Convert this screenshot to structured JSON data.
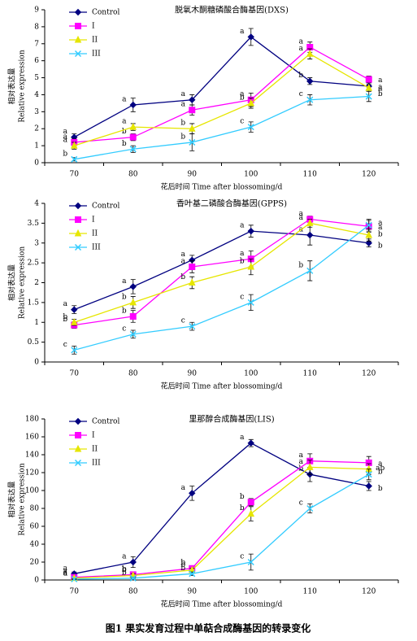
{
  "chart_data": [
    {
      "type": "line",
      "title": "脱氧木酮糖磷酸合酶基因(DXS)",
      "x_label": "花后时间 Time after blossoming/d",
      "y_label": [
        "相对表达量",
        "Relative expression"
      ],
      "categories": [
        "70",
        "80",
        "90",
        "100",
        "110",
        "120"
      ],
      "ylim": [
        0,
        9
      ],
      "yticks": [
        0,
        1,
        2,
        3,
        4,
        5,
        6,
        7,
        8,
        9
      ],
      "legend": "upper-left",
      "series": [
        {
          "name": "Control",
          "color": "#000080",
          "marker": "diamond",
          "values": [
            1.5,
            3.4,
            3.7,
            7.4,
            4.8,
            4.5
          ],
          "errors": [
            0.2,
            0.4,
            0.3,
            0.5,
            0.2,
            0.2
          ],
          "letters": [
            "a",
            "a",
            "a",
            "a",
            "b",
            "a"
          ]
        },
        {
          "name": "I",
          "color": "#ff00ff",
          "marker": "square",
          "values": [
            1.2,
            1.5,
            3.1,
            3.7,
            6.8,
            4.9
          ],
          "errors": [
            0.2,
            0.2,
            0.3,
            0.4,
            0.3,
            0.2
          ],
          "letters": [
            "a",
            "b",
            "a",
            "a",
            "a",
            "a"
          ]
        },
        {
          "name": "II",
          "color": "#e6e600",
          "marker": "triangle",
          "values": [
            1.0,
            2.1,
            2.0,
            3.5,
            6.4,
            4.4
          ],
          "errors": [
            0.2,
            0.2,
            0.3,
            0.3,
            0.3,
            0.2
          ],
          "letters": [
            "a",
            "a",
            "b",
            "b",
            "a",
            "a"
          ]
        },
        {
          "name": "III",
          "color": "#33ccff",
          "marker": "x",
          "values": [
            0.2,
            0.8,
            1.2,
            2.1,
            3.7,
            3.9
          ],
          "errors": [
            0.1,
            0.2,
            0.5,
            0.3,
            0.3,
            0.3
          ],
          "letters": [
            "b",
            "b",
            "b",
            "c",
            "c",
            "b"
          ]
        }
      ]
    },
    {
      "type": "line",
      "title": "香叶基二磷酸合酶基因(GPPS)",
      "x_label": "花后时间 Time after blossoming/d",
      "y_label": [
        "相对表达量",
        "Relative expression"
      ],
      "categories": [
        "70",
        "80",
        "90",
        "100",
        "110",
        "120"
      ],
      "ylim": [
        0,
        4
      ],
      "yticks": [
        0,
        0.5,
        1,
        1.5,
        2,
        2.5,
        3,
        3.5,
        4
      ],
      "legend": "upper-left",
      "series": [
        {
          "name": "Control",
          "color": "#000080",
          "marker": "diamond",
          "values": [
            1.32,
            1.9,
            2.57,
            3.3,
            3.2,
            3.0
          ],
          "errors": [
            0.1,
            0.18,
            0.12,
            0.15,
            0.25,
            0.1
          ],
          "letters": [
            "a",
            "a",
            "a",
            "a",
            "a",
            "b"
          ]
        },
        {
          "name": "I",
          "color": "#ff00ff",
          "marker": "square",
          "values": [
            0.93,
            1.15,
            2.4,
            2.6,
            3.6,
            3.42
          ],
          "errors": [
            0.08,
            0.15,
            0.15,
            0.2,
            0.08,
            0.15
          ],
          "letters": [
            "b",
            "b",
            "a",
            "a",
            "a",
            "a"
          ]
        },
        {
          "name": "II",
          "color": "#e6e600",
          "marker": "triangle",
          "values": [
            1.0,
            1.5,
            2.0,
            2.4,
            3.5,
            3.2
          ],
          "errors": [
            0.08,
            0.15,
            0.15,
            0.2,
            0.1,
            0.15
          ],
          "letters": [
            "b",
            "b",
            "b",
            "b",
            "a",
            "b"
          ]
        },
        {
          "name": "III",
          "color": "#33ccff",
          "marker": "x",
          "values": [
            0.3,
            0.7,
            0.9,
            1.5,
            2.3,
            3.45
          ],
          "errors": [
            0.1,
            0.1,
            0.1,
            0.2,
            0.25,
            0.15
          ],
          "letters": [
            "c",
            "c",
            "c",
            "c",
            "b",
            "a"
          ]
        }
      ]
    },
    {
      "type": "line",
      "title": "里那醇合成酶基因(LIS)",
      "x_label": "花后时间 Time after blossoming/d",
      "y_label": [
        "相对表达量",
        "Relative expression"
      ],
      "categories": [
        "70",
        "80",
        "90",
        "100",
        "110",
        "120"
      ],
      "ylim": [
        0,
        180
      ],
      "yticks": [
        0,
        20,
        40,
        60,
        80,
        100,
        120,
        140,
        160,
        180
      ],
      "legend": "upper-left",
      "series": [
        {
          "name": "Control",
          "color": "#000080",
          "marker": "diamond",
          "values": [
            7,
            20,
            97,
            153,
            118,
            105
          ],
          "errors": [
            2,
            6,
            8,
            4,
            8,
            5
          ],
          "letters": [
            "a",
            "a",
            "a",
            "a",
            "b",
            "b"
          ]
        },
        {
          "name": "I",
          "color": "#ff00ff",
          "marker": "square",
          "values": [
            3,
            6,
            13,
            87,
            133,
            131
          ],
          "errors": [
            1,
            2,
            3,
            4,
            8,
            7
          ],
          "letters": [
            "a",
            "b",
            "b",
            "b",
            "a",
            "a"
          ]
        },
        {
          "name": "II",
          "color": "#e6e600",
          "marker": "triangle",
          "values": [
            2,
            5,
            11,
            74,
            126,
            124
          ],
          "errors": [
            1,
            2,
            2,
            8,
            8,
            6
          ],
          "letters": [
            "a",
            "b",
            "b",
            "b",
            "a",
            "ab"
          ]
        },
        {
          "name": "III",
          "color": "#33ccff",
          "marker": "x",
          "values": [
            1,
            2,
            7,
            20,
            80,
            118
          ],
          "errors": [
            0.5,
            1,
            2,
            9,
            5,
            6
          ],
          "letters": [
            "a",
            "b",
            "b",
            "c",
            "c",
            "b"
          ]
        }
      ]
    }
  ],
  "caption": "图1 果实发育过程中单萜合成酶基因的转录变化"
}
